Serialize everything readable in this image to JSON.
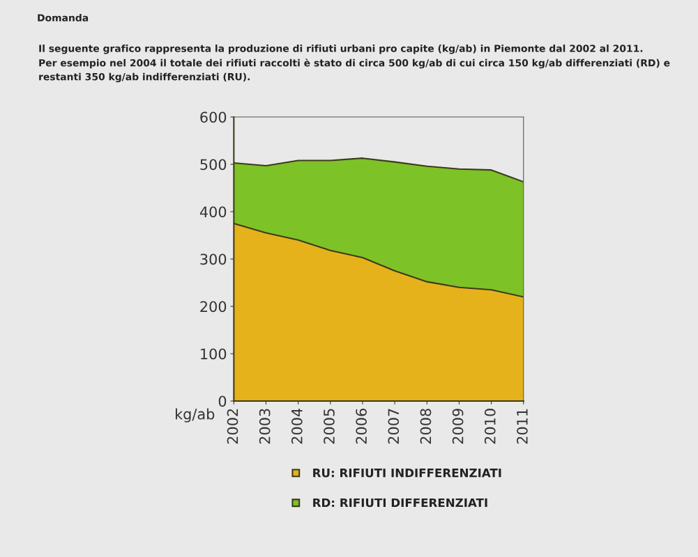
{
  "chart_data": {
    "type": "area",
    "stacked": true,
    "title": "Domanda",
    "subtitle": "Il seguente grafico rappresenta la produzione di rifiuti urbani pro capite (kg/ab) in Piemonte dal 2002 al 2011.\nPer esempio nel 2004 il totale dei rifiuti raccolti è stato di circa 500 kg/ab di cui circa 150 kg/ab differenziati (RD) e\nrestanti 350 kg/ab indifferenziati (RU).",
    "ylabel": "kg/ab",
    "categories": [
      "2002",
      "2003",
      "2004",
      "2005",
      "2006",
      "2007",
      "2008",
      "2009",
      "2010",
      "2011"
    ],
    "series": [
      {
        "name": "RU: RIFIUTI INDIFFERENZIATI",
        "color": "#e6b21c",
        "values": [
          375,
          355,
          340,
          318,
          303,
          275,
          252,
          240,
          235,
          220
        ]
      },
      {
        "name": "RD: RIFIUTI DIFFERENZIATI",
        "color": "#7dc226",
        "values": [
          128,
          142,
          168,
          190,
          210,
          230,
          244,
          250,
          253,
          243
        ]
      }
    ],
    "ylim": [
      0,
      600
    ],
    "yticks": [
      0,
      100,
      200,
      300,
      400,
      500,
      600
    ],
    "grid": false,
    "legend": "bottom"
  }
}
